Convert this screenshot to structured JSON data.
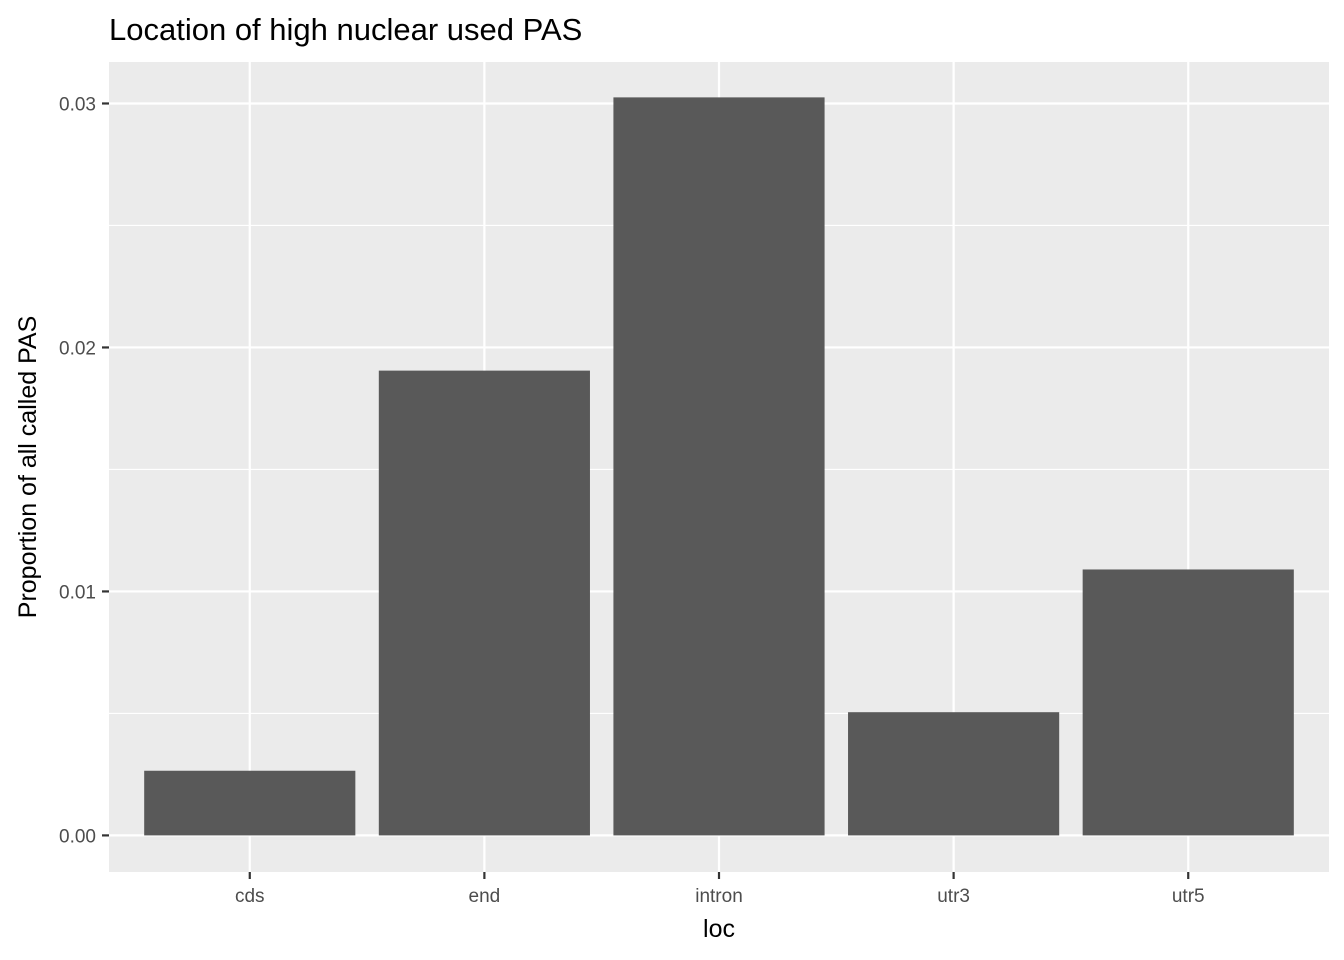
{
  "chart_data": {
    "type": "bar",
    "title": "Location of high nuclear used PAS",
    "xlabel": "loc",
    "ylabel": "Proportion of all called PAS",
    "categories": [
      "cds",
      "end",
      "intron",
      "utr3",
      "utr5"
    ],
    "values": [
      0.00265,
      0.01905,
      0.03025,
      0.00505,
      0.0109
    ],
    "ylim": [
      -0.0015,
      0.0317
    ],
    "yticks": [
      0.0,
      0.01,
      0.02,
      0.03
    ],
    "ytick_labels": [
      "0.00",
      "0.01",
      "0.02",
      "0.03"
    ],
    "grid": true,
    "colors": {
      "bar": "#595959",
      "panel_background": "#ebebeb",
      "grid": "#ffffff",
      "tick_text": "#4d4d4d"
    }
  }
}
